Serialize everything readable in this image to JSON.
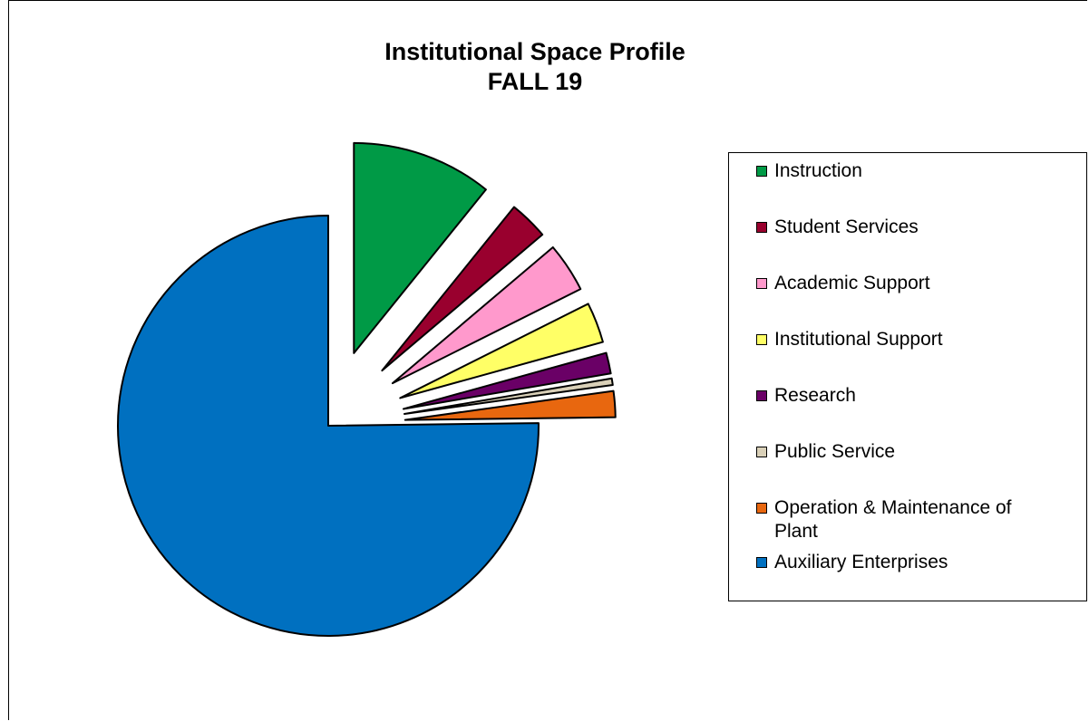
{
  "chart_data": {
    "type": "pie",
    "title": "Institutional Space Profile",
    "subtitle": "FALL 19",
    "legend_position": "right",
    "slices": [
      {
        "name": "Instruction",
        "value": 10.8,
        "color": "#009A46",
        "exploded": true
      },
      {
        "name": "Student Services",
        "value": 3.0,
        "color": "#99002E",
        "exploded": true
      },
      {
        "name": "Academic Support",
        "value": 3.8,
        "color": "#FF99CC",
        "exploded": true
      },
      {
        "name": "Institutional Support",
        "value": 3.1,
        "color": "#FFFF66",
        "exploded": true
      },
      {
        "name": "Research",
        "value": 1.6,
        "color": "#6A0066",
        "exploded": true
      },
      {
        "name": "Public Service",
        "value": 0.5,
        "color": "#D9D0B8",
        "exploded": true
      },
      {
        "name": "Operation & Maintenance of Plant",
        "value": 2.0,
        "color": "#E8670F",
        "exploded": true
      },
      {
        "name": "Auxiliary Enterprises",
        "value": 75.2,
        "color": "#0070C0",
        "exploded": false
      }
    ]
  }
}
